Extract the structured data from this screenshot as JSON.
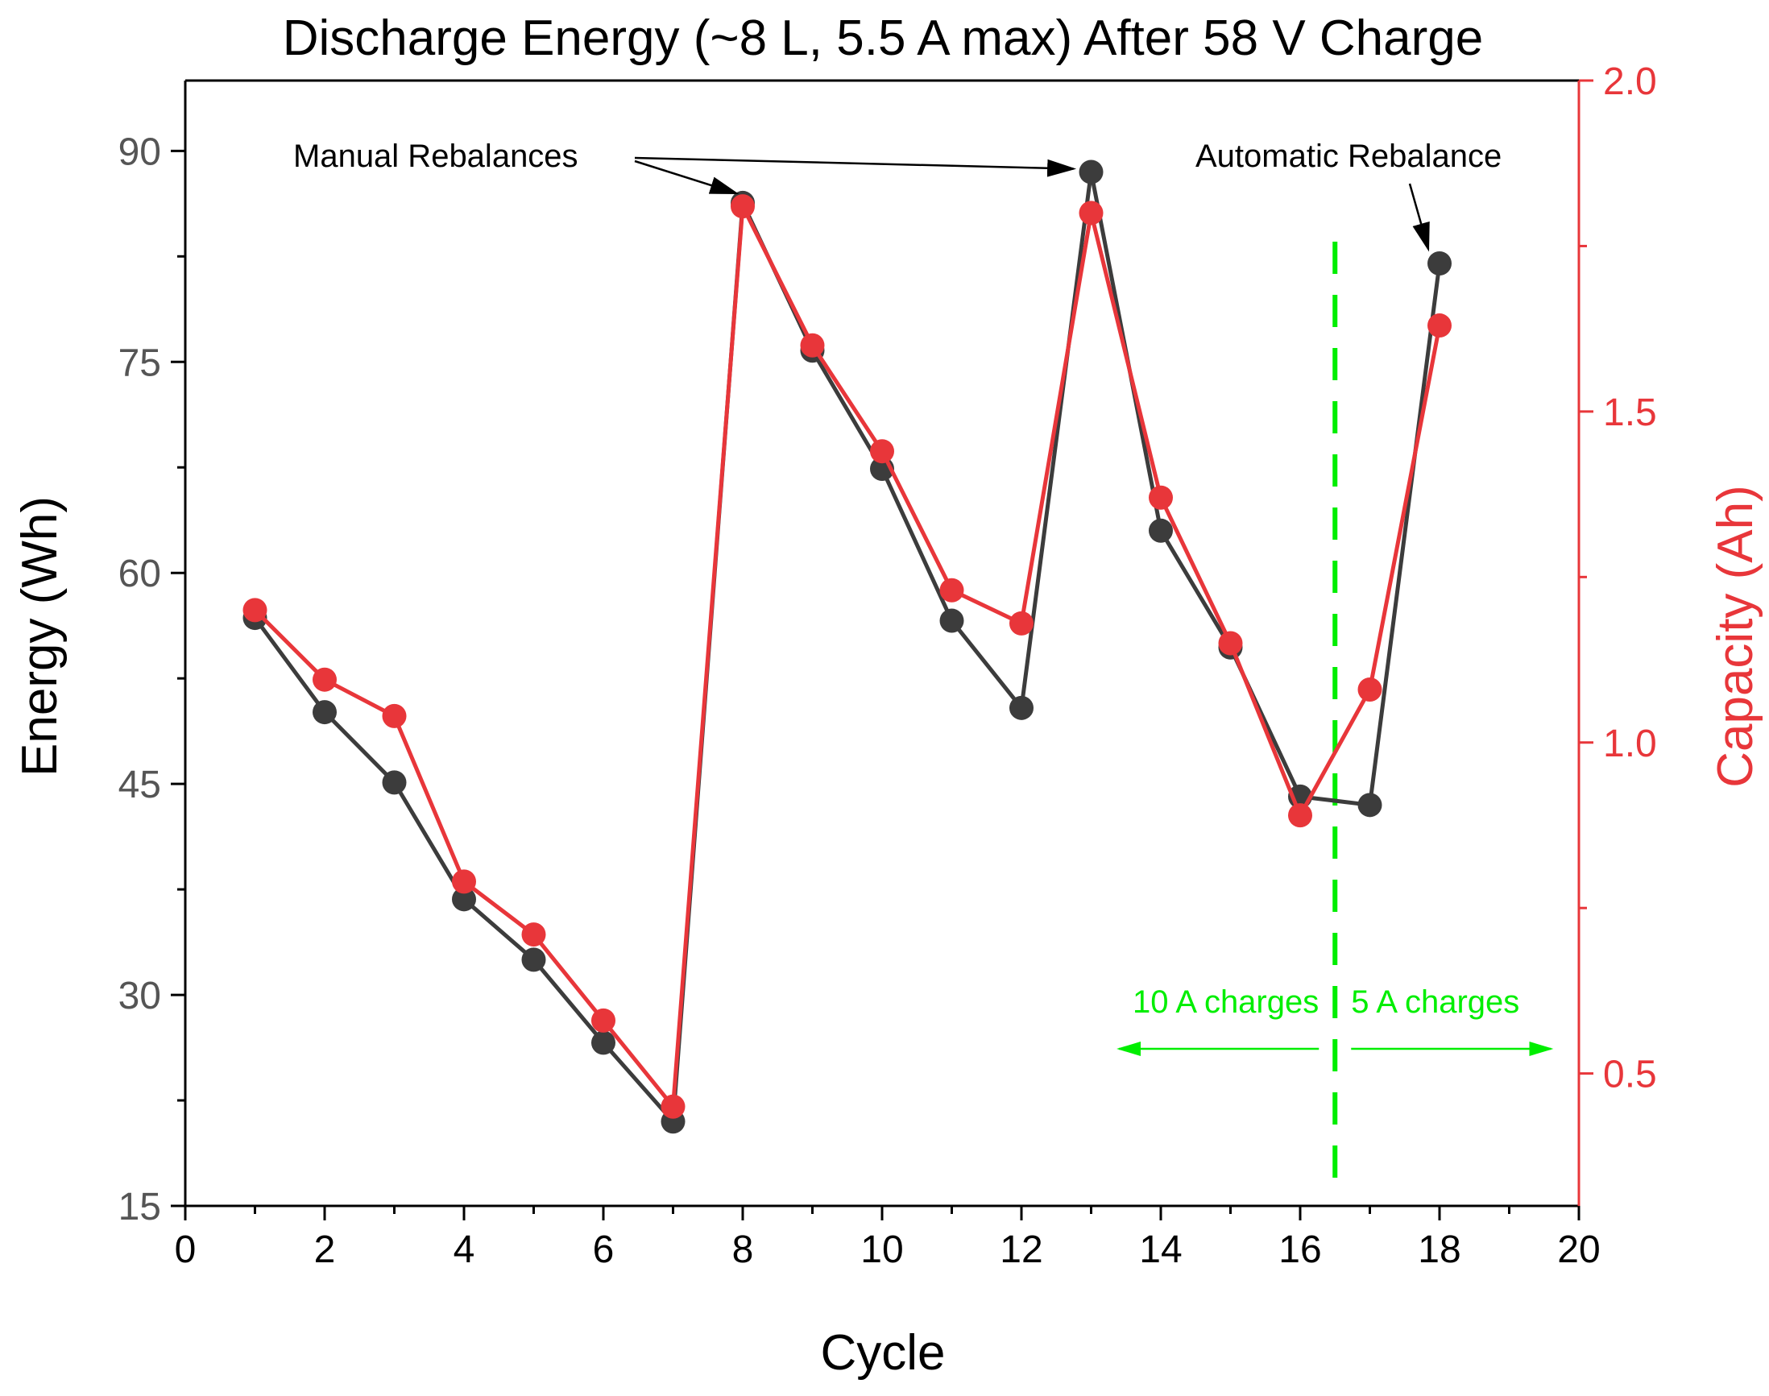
{
  "chart_data": {
    "type": "line",
    "title": "Discharge Energy (~8 L, 5.5 A max) After 58 V Charge",
    "xlabel": "Cycle",
    "ylabel": "Energy (Wh)",
    "y2label": "Capacity (Ah)",
    "xlim": [
      0,
      20
    ],
    "ylim": [
      15,
      95
    ],
    "y2lim": [
      0.3,
      2.0
    ],
    "xticks": [
      "0",
      "2",
      "4",
      "6",
      "8",
      "10",
      "12",
      "14",
      "16",
      "18",
      "20"
    ],
    "yticks": [
      "15",
      "30",
      "45",
      "60",
      "75",
      "90"
    ],
    "y2ticks": [
      "0.5",
      "1.0",
      "1.5",
      "2.0"
    ],
    "grid": false,
    "series": [
      {
        "name": "Energy",
        "axis": "left",
        "color": "#3c3c3c",
        "x": [
          1,
          2,
          3,
          4,
          5,
          6,
          7,
          8,
          9,
          10,
          11,
          12,
          13,
          14,
          15,
          16,
          17,
          18
        ],
        "values": [
          56.8,
          50.1,
          45.1,
          36.8,
          32.5,
          26.6,
          21.0,
          86.3,
          75.8,
          67.4,
          56.6,
          50.4,
          88.5,
          63.0,
          54.7,
          44.1,
          43.5,
          82.0
        ]
      },
      {
        "name": "Capacity",
        "axis": "right",
        "color": "#e8363a",
        "x": [
          1,
          2,
          3,
          4,
          5,
          6,
          7,
          8,
          9,
          10,
          11,
          12,
          13,
          14,
          15,
          16,
          17,
          18
        ],
        "values": [
          1.2,
          1.095,
          1.04,
          0.79,
          0.71,
          0.58,
          0.45,
          1.81,
          1.6,
          1.44,
          1.23,
          1.18,
          1.8,
          1.37,
          1.15,
          0.89,
          1.08,
          1.63
        ]
      }
    ],
    "annotations": [
      {
        "text": "Manual Rebalances",
        "targets": [
          8,
          13
        ]
      },
      {
        "text": "Automatic Rebalance",
        "targets": [
          18
        ]
      }
    ],
    "divider": {
      "x": 16.5,
      "color": "#00ee00",
      "left_label": "10 A charges",
      "right_label": "5 A charges"
    },
    "colors": {
      "energy": "#3c3c3c",
      "capacity": "#e8363a",
      "right_axis": "#e8363a",
      "left_ticks": "#555555",
      "divider": "#00ee00"
    }
  }
}
